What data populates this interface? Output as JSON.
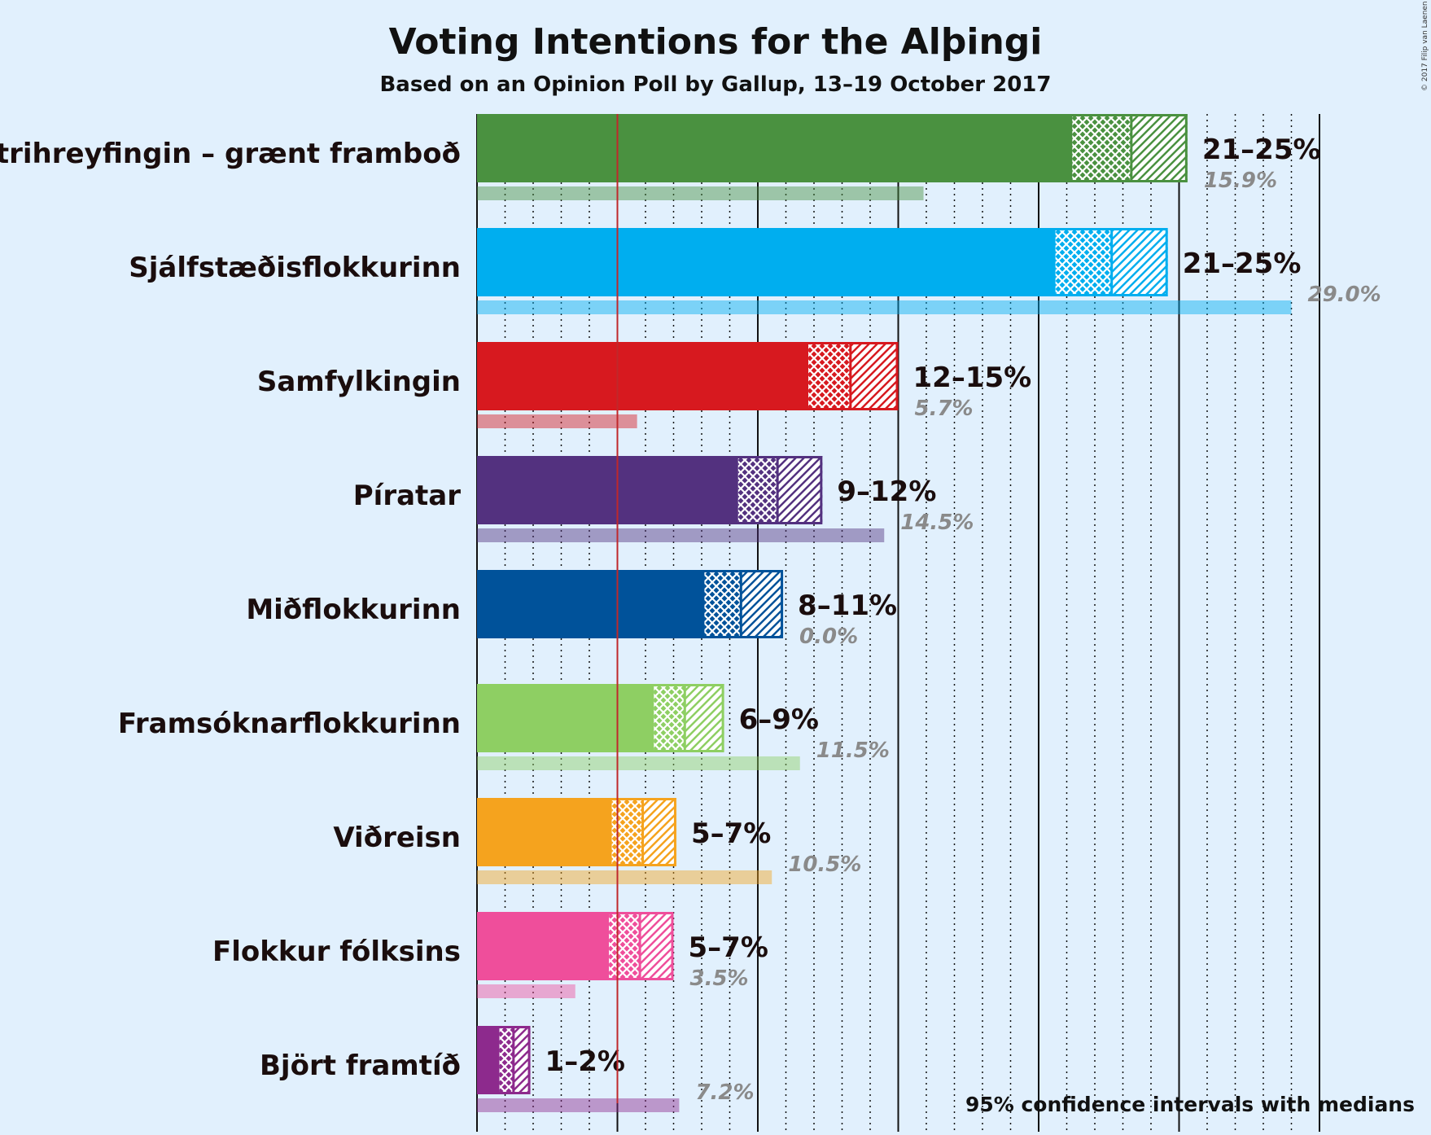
{
  "title": "Voting Intentions for the Alþingi",
  "subtitle": "Based on an Opinion Poll by Gallup, 13–19 October 2017",
  "footnote": "95% confidence intervals with medians",
  "copyright": "© 2017 Filip van Laenen",
  "chart_data": {
    "type": "bar",
    "orientation": "horizontal",
    "xlim": [
      0,
      30
    ],
    "threshold": 5,
    "grid": "dotted every 1%, solid every 5%",
    "legend": "none",
    "series": [
      {
        "party": "Vinstrihreyfingin – grænt framboð",
        "color": "#4a9140",
        "ci_low": 21.2,
        "median": 23.3,
        "ci_high": 25.3,
        "range_label": "21–25%",
        "previous": 15.9,
        "previous_label": "15.9%"
      },
      {
        "party": "Sjálfstæðisflokkurinn",
        "color": "#00aeef",
        "ci_low": 20.6,
        "median": 22.6,
        "ci_high": 24.6,
        "range_label": "21–25%",
        "previous": 29.0,
        "previous_label": "29.0%"
      },
      {
        "party": "Samfylkingin",
        "color": "#d7191f",
        "ci_low": 11.8,
        "median": 13.3,
        "ci_high": 15.0,
        "range_label": "12–15%",
        "previous": 5.7,
        "previous_label": "5.7%"
      },
      {
        "party": "Píratar",
        "color": "#53317f",
        "ci_low": 9.3,
        "median": 10.7,
        "ci_high": 12.3,
        "range_label": "9–12%",
        "previous": 14.5,
        "previous_label": "14.5%"
      },
      {
        "party": "Miðflokkurinn",
        "color": "#00529a",
        "ci_low": 8.1,
        "median": 9.4,
        "ci_high": 10.9,
        "range_label": "8–11%",
        "previous": 0.0,
        "previous_label": "0.0%"
      },
      {
        "party": "Framsóknarflokkurinn",
        "color": "#8ecf63",
        "ci_low": 6.3,
        "median": 7.4,
        "ci_high": 8.8,
        "range_label": "6–9%",
        "previous": 11.5,
        "previous_label": "11.5%"
      },
      {
        "party": "Viðreisn",
        "color": "#f5a31e",
        "ci_low": 4.8,
        "median": 5.9,
        "ci_high": 7.1,
        "range_label": "5–7%",
        "previous": 10.5,
        "previous_label": "10.5%"
      },
      {
        "party": "Flokkur fólksins",
        "color": "#ef4e9b",
        "ci_low": 4.7,
        "median": 5.8,
        "ci_high": 7.0,
        "range_label": "5–7%",
        "previous": 3.5,
        "previous_label": "3.5%"
      },
      {
        "party": "Björt framtíð",
        "color": "#8d2a8d",
        "ci_low": 0.8,
        "median": 1.3,
        "ci_high": 1.9,
        "range_label": "1–2%",
        "previous": 7.2,
        "previous_label": "7.2%"
      }
    ]
  }
}
